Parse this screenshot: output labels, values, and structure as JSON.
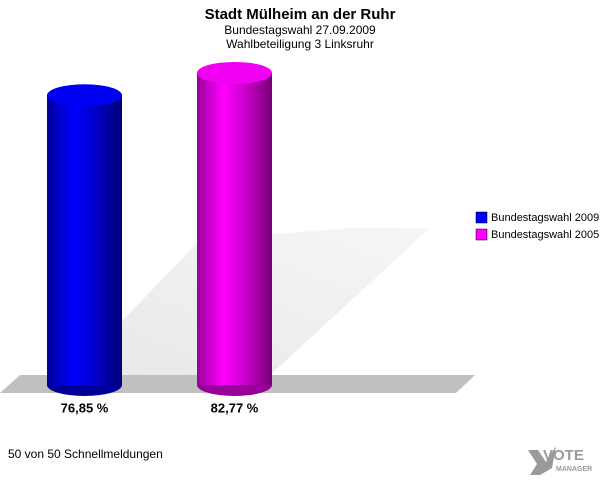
{
  "chart_data": {
    "type": "bar",
    "title": "Stadt Mülheim an der Ruhr",
    "subtitle": "Bundestagswahl 27.09.2009",
    "subtitle2": "Wahlbeteiligung 3 Linksruhr",
    "series": [
      {
        "name": "Bundestagswahl 2009",
        "color": "#0000ff",
        "values": [
          76.85
        ],
        "value_labels": [
          "76,85 %"
        ]
      },
      {
        "name": "Bundestagswahl 2005",
        "color": "#ff00ff",
        "values": [
          82.77
        ],
        "value_labels": [
          "82,77 %"
        ]
      }
    ],
    "footer": "50 von 50 Schnellmeldungen",
    "logo": {
      "line1": "VOTE",
      "line2": "MANAGER"
    }
  }
}
